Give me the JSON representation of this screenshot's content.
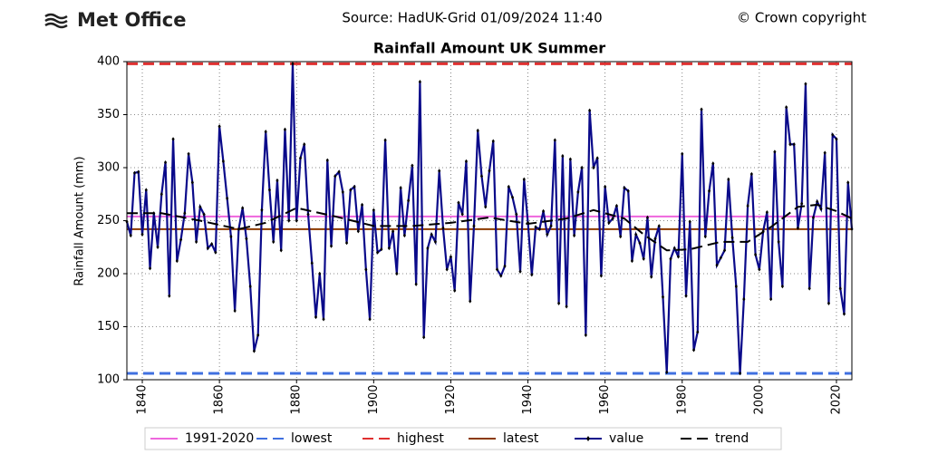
{
  "header": {
    "logo": "Met Office",
    "source": "Source: HadUK-Grid 01/09/2024 11:40",
    "copyright": "© Crown copyright"
  },
  "chart_data": {
    "type": "line",
    "title": "Rainfall Amount UK Summer",
    "y_label": "Rainfall Amount (mm)",
    "xlim": [
      1836,
      2024
    ],
    "xticks": [
      1840,
      1860,
      1880,
      1900,
      1920,
      1940,
      1960,
      1980,
      2000,
      2020
    ],
    "ylim": [
      100,
      400
    ],
    "yticks": [
      100,
      150,
      200,
      250,
      300,
      350,
      400
    ],
    "grid": true,
    "reference_lines": [
      {
        "name": "1991-2020",
        "value": 254,
        "color": "#ee66dd",
        "dash": "solid"
      },
      {
        "name": "lowest",
        "value": 106,
        "color": "#4070e0",
        "dash": "dashed"
      },
      {
        "name": "highest",
        "value": 398,
        "color": "#e03030",
        "dash": "dashed"
      },
      {
        "name": "latest",
        "value": 242,
        "color": "#8b3a00",
        "dash": "solid"
      }
    ],
    "series": [
      {
        "name": "value",
        "color": "#0a0a8a",
        "x": [
          1836,
          1837,
          1838,
          1839,
          1840,
          1841,
          1842,
          1843,
          1844,
          1845,
          1846,
          1847,
          1848,
          1849,
          1850,
          1851,
          1852,
          1853,
          1854,
          1855,
          1856,
          1857,
          1858,
          1859,
          1860,
          1861,
          1862,
          1863,
          1864,
          1865,
          1866,
          1867,
          1868,
          1869,
          1870,
          1871,
          1872,
          1873,
          1874,
          1875,
          1876,
          1877,
          1878,
          1879,
          1880,
          1881,
          1882,
          1883,
          1884,
          1885,
          1886,
          1887,
          1888,
          1889,
          1890,
          1891,
          1892,
          1893,
          1894,
          1895,
          1896,
          1897,
          1898,
          1899,
          1900,
          1901,
          1902,
          1903,
          1904,
          1905,
          1906,
          1907,
          1908,
          1909,
          1910,
          1911,
          1912,
          1913,
          1914,
          1915,
          1916,
          1917,
          1918,
          1919,
          1920,
          1921,
          1922,
          1923,
          1924,
          1925,
          1926,
          1927,
          1928,
          1929,
          1930,
          1931,
          1932,
          1933,
          1934,
          1935,
          1936,
          1937,
          1938,
          1939,
          1940,
          1941,
          1942,
          1943,
          1944,
          1945,
          1946,
          1947,
          1948,
          1949,
          1950,
          1951,
          1952,
          1953,
          1954,
          1955,
          1956,
          1957,
          1958,
          1959,
          1960,
          1961,
          1962,
          1963,
          1964,
          1965,
          1966,
          1967,
          1968,
          1969,
          1970,
          1971,
          1972,
          1973,
          1974,
          1975,
          1976,
          1977,
          1978,
          1979,
          1980,
          1981,
          1982,
          1983,
          1984,
          1985,
          1986,
          1987,
          1988,
          1989,
          1990,
          1991,
          1992,
          1993,
          1994,
          1995,
          1996,
          1997,
          1998,
          1999,
          2000,
          2001,
          2002,
          2003,
          2004,
          2005,
          2006,
          2007,
          2008,
          2009,
          2010,
          2011,
          2012,
          2013,
          2014,
          2015,
          2016,
          2017,
          2018,
          2019,
          2020,
          2021,
          2022,
          2023,
          2024
        ],
        "values": [
          249,
          236,
          295,
          296,
          237,
          279,
          205,
          257,
          225,
          275,
          305,
          179,
          327,
          212,
          232,
          257,
          313,
          286,
          230,
          263,
          256,
          224,
          228,
          220,
          339,
          306,
          271,
          235,
          165,
          242,
          262,
          233,
          188,
          127,
          142,
          260,
          334,
          279,
          230,
          288,
          222,
          336,
          250,
          398,
          250,
          309,
          322,
          256,
          210,
          159,
          200,
          157,
          307,
          226,
          292,
          296,
          277,
          229,
          279,
          282,
          240,
          265,
          204,
          157,
          260,
          220,
          223,
          326,
          224,
          240,
          200,
          281,
          236,
          269,
          302,
          190,
          381,
          140,
          224,
          237,
          230,
          297,
          243,
          204,
          216,
          184,
          267,
          256,
          306,
          174,
          245,
          335,
          292,
          263,
          297,
          325,
          204,
          198,
          207,
          282,
          272,
          256,
          202,
          289,
          248,
          199,
          244,
          242,
          259,
          237,
          245,
          326,
          172,
          311,
          169,
          308,
          236,
          277,
          300,
          142,
          354,
          300,
          309,
          198,
          282,
          248,
          252,
          264,
          235,
          281,
          278,
          212,
          237,
          229,
          214,
          253,
          197,
          233,
          245,
          178,
          107,
          214,
          224,
          216,
          313,
          179,
          249,
          128,
          145,
          355,
          235,
          278,
          304,
          208,
          215,
          222,
          289,
          234,
          188,
          106,
          176,
          264,
          294,
          218,
          204,
          240,
          258,
          176,
          315,
          230,
          188,
          357,
          322,
          322,
          243,
          266,
          379,
          186,
          253,
          268,
          261,
          314,
          172,
          331,
          327,
          186,
          162,
          286,
          242
        ]
      },
      {
        "name": "trend",
        "color": "#000000",
        "dash": "dashed",
        "x": [
          1836,
          1845,
          1855,
          1865,
          1872,
          1880,
          1890,
          1900,
          1910,
          1920,
          1930,
          1940,
          1950,
          1957,
          1965,
          1970,
          1976,
          1982,
          1990,
          1997,
          2003,
          2010,
          2015,
          2020,
          2024
        ],
        "values": [
          257,
          257,
          250,
          242,
          248,
          262,
          254,
          245,
          245,
          248,
          253,
          247,
          252,
          260,
          252,
          237,
          222,
          223,
          230,
          230,
          244,
          263,
          265,
          259,
          252
        ]
      }
    ]
  }
}
